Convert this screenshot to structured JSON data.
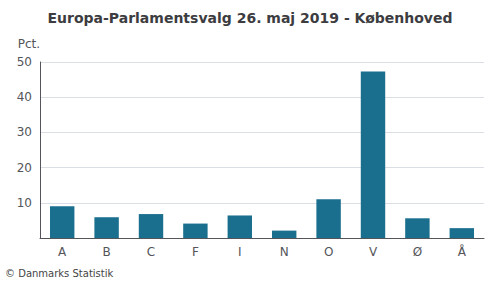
{
  "chart_data": {
    "type": "bar",
    "title": "Europa-Parlamentsvalg 26. maj 2019 - Københoved",
    "categories": [
      "A",
      "B",
      "C",
      "F",
      "I",
      "N",
      "O",
      "V",
      "Ø",
      "Å"
    ],
    "values": [
      9.0,
      5.9,
      6.8,
      4.1,
      6.4,
      2.1,
      11.0,
      47.3,
      5.6,
      2.8
    ],
    "color": "#1a6e8e",
    "ylabel": "Pct.",
    "ylim": [
      0,
      50
    ],
    "yticks": [
      10,
      20,
      30,
      40,
      50
    ],
    "grid": true,
    "footnote": "© Danmarks Statistik"
  }
}
